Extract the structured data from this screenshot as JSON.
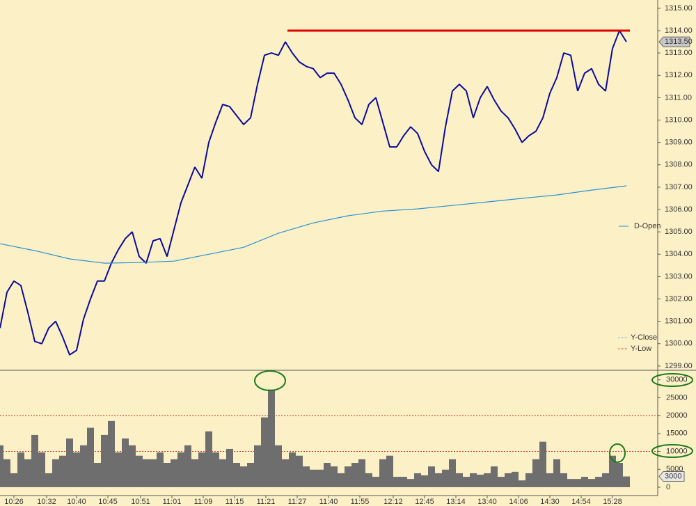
{
  "chart_data": [
    {
      "type": "line",
      "xlim": [
        0,
        94.5
      ],
      "ylim": [
        1298.81,
        1315.37
      ],
      "yticks": [
        {
          "value": 1299,
          "label": "1299.00"
        },
        {
          "value": 1300,
          "label": "1300.00"
        },
        {
          "value": 1301,
          "label": "1301.00"
        },
        {
          "value": 1302,
          "label": "1302.00"
        },
        {
          "value": 1303,
          "label": "1303.00"
        },
        {
          "value": 1304,
          "label": "1304.00"
        },
        {
          "value": 1305,
          "label": "1305.00"
        },
        {
          "value": 1306,
          "label": "1306.00"
        },
        {
          "value": 1307,
          "label": "1307.00"
        },
        {
          "value": 1308,
          "label": "1308.00"
        },
        {
          "value": 1309,
          "label": "1309.00"
        },
        {
          "value": 1310,
          "label": "1310.00"
        },
        {
          "value": 1311,
          "label": "1311.00"
        },
        {
          "value": 1312,
          "label": "1312.00"
        },
        {
          "value": 1313,
          "label": "1313.00"
        },
        {
          "value": 1314,
          "label": "1314.00"
        },
        {
          "value": 1315,
          "label": "1315.00"
        }
      ],
      "series": [
        {
          "color": "#0a0a9c",
          "x": [
            0,
            1,
            2,
            3,
            4,
            5,
            6,
            7,
            8,
            9,
            10,
            11,
            12,
            13,
            14,
            15,
            16,
            17,
            18,
            19,
            20,
            21,
            22,
            23,
            24,
            25,
            26,
            27,
            28,
            29,
            30,
            31,
            32,
            33,
            34,
            35,
            36,
            37,
            38,
            39,
            40,
            41,
            42,
            43,
            44,
            45,
            46,
            47,
            48,
            49,
            50,
            51,
            52,
            53,
            54,
            55,
            56,
            57,
            58,
            59,
            60,
            61,
            62,
            63,
            64,
            65,
            66,
            67,
            68,
            69,
            70,
            71,
            72,
            73,
            74,
            75,
            76,
            77,
            78,
            79,
            80,
            81,
            82,
            83,
            84,
            85,
            86,
            87,
            88,
            89,
            90
          ],
          "values": [
            1300.7,
            1302.3,
            1302.8,
            1302.6,
            1301.4,
            1300.1,
            1300.0,
            1300.7,
            1301.0,
            1300.3,
            1299.5,
            1299.7,
            1301.1,
            1302.0,
            1302.8,
            1302.8,
            1303.6,
            1304.2,
            1304.7,
            1305.0,
            1303.9,
            1303.6,
            1304.6,
            1304.7,
            1303.9,
            1305.1,
            1306.3,
            1307.1,
            1307.9,
            1307.4,
            1309.0,
            1309.9,
            1310.7,
            1310.6,
            1310.2,
            1309.8,
            1310.1,
            1311.6,
            1312.9,
            1313.0,
            1312.9,
            1313.5,
            1313.0,
            1312.6,
            1312.4,
            1312.3,
            1311.9,
            1312.1,
            1312.1,
            1311.6,
            1310.9,
            1310.1,
            1309.8,
            1310.7,
            1311.0,
            1309.9,
            1308.8,
            1308.8,
            1309.3,
            1309.7,
            1309.4,
            1308.6,
            1308.0,
            1307.7,
            1309.7,
            1311.3,
            1311.6,
            1311.3,
            1310.1,
            1311.0,
            1311.5,
            1310.9,
            1310.4,
            1310.1,
            1309.6,
            1309.0,
            1309.3,
            1309.5,
            1310.1,
            1311.2,
            1311.9,
            1313.0,
            1312.9,
            1311.3,
            1312.1,
            1312.3,
            1311.6,
            1311.3,
            1313.2,
            1314.0,
            1313.5
          ]
        },
        {
          "name": "D-Open",
          "color": "#2a8fd6",
          "x": [
            0,
            5,
            10,
            15,
            20,
            25,
            30,
            35,
            40,
            45,
            50,
            55,
            60,
            65,
            70,
            75,
            80,
            85,
            90
          ],
          "values": [
            1304.47,
            1304.16,
            1303.79,
            1303.6,
            1303.63,
            1303.69,
            1304.0,
            1304.31,
            1304.94,
            1305.4,
            1305.72,
            1305.93,
            1306.03,
            1306.18,
            1306.34,
            1306.5,
            1306.65,
            1306.87,
            1307.06
          ]
        }
      ],
      "reference_lines": [
        {
          "name": "Y-Close",
          "color": "#3cb8b0"
        },
        {
          "name": "Y-Low",
          "color": "#e02020"
        }
      ],
      "level": {
        "value": 1314.0,
        "x": [
          41.3,
          90.5
        ],
        "color": "#e00000"
      },
      "last_price": {
        "value": 1313.5,
        "label": "1313.50"
      }
    },
    {
      "type": "bar",
      "color": "#6e6e6e",
      "xlim": [
        0,
        94.5
      ],
      "ylim": [
        -2340,
        31500
      ],
      "yticks": [
        0,
        5000,
        10000,
        15000,
        20000,
        25000,
        30000
      ],
      "ref_lines": [
        10000,
        20000
      ],
      "xticks": [
        {
          "value": 2,
          "label": "10:26"
        },
        {
          "value": 6.7,
          "label": "10:32"
        },
        {
          "value": 11,
          "label": "10:40"
        },
        {
          "value": 15.5,
          "label": "10:45"
        },
        {
          "value": 20.2,
          "label": "10:51"
        },
        {
          "value": 24.7,
          "label": "11:01"
        },
        {
          "value": 29.2,
          "label": "11:09"
        },
        {
          "value": 33.7,
          "label": "11:15"
        },
        {
          "value": 38.2,
          "label": "11:21"
        },
        {
          "value": 42.7,
          "label": "11:27"
        },
        {
          "value": 47.2,
          "label": "11:40"
        },
        {
          "value": 51.7,
          "label": "11:55"
        },
        {
          "value": 56.5,
          "label": "12:12"
        },
        {
          "value": 61,
          "label": "12:45"
        },
        {
          "value": 65.5,
          "label": "13:14"
        },
        {
          "value": 70,
          "label": "13:40"
        },
        {
          "value": 74.5,
          "label": "14:06"
        },
        {
          "value": 79,
          "label": "14:30"
        },
        {
          "value": 83.5,
          "label": "14:54"
        },
        {
          "value": 88,
          "label": "15:28"
        }
      ],
      "x": [
        0,
        1,
        2,
        3,
        4,
        5,
        6,
        7,
        8,
        9,
        10,
        11,
        12,
        13,
        14,
        15,
        16,
        17,
        18,
        19,
        20,
        21,
        22,
        23,
        24,
        25,
        26,
        27,
        28,
        29,
        30,
        31,
        32,
        33,
        34,
        35,
        36,
        37,
        38,
        39,
        40,
        41,
        42,
        43,
        44,
        45,
        46,
        47,
        48,
        49,
        50,
        51,
        52,
        53,
        54,
        55,
        56,
        57,
        58,
        59,
        60,
        61,
        62,
        63,
        64,
        65,
        66,
        67,
        68,
        69,
        70,
        71,
        72,
        73,
        74,
        75,
        76,
        77,
        78,
        79,
        80,
        81,
        82,
        83,
        84,
        85,
        86,
        87,
        88,
        89,
        90
      ],
      "values": [
        11700,
        7800,
        3900,
        9700,
        7800,
        14600,
        9700,
        3900,
        7800,
        8800,
        13600,
        9700,
        11700,
        16600,
        6800,
        14600,
        18500,
        9700,
        13600,
        11700,
        8800,
        7800,
        7800,
        9700,
        6800,
        7800,
        9700,
        11700,
        7800,
        9700,
        15600,
        9700,
        7800,
        10700,
        6800,
        5800,
        6800,
        11700,
        19500,
        27300,
        11700,
        7800,
        9700,
        8800,
        5800,
        4900,
        4900,
        6800,
        5800,
        3900,
        5800,
        6800,
        7800,
        3900,
        2900,
        7800,
        8800,
        2900,
        2900,
        2300,
        3900,
        3300,
        5800,
        3900,
        4900,
        7800,
        3900,
        2900,
        3900,
        3500,
        3900,
        5800,
        2900,
        3900,
        4300,
        1900,
        3900,
        7800,
        12700,
        3900,
        7800,
        3900,
        2300,
        2300,
        2900,
        2300,
        2900,
        3900,
        8800,
        6800,
        3000
      ],
      "last_volume": 3000
    }
  ]
}
